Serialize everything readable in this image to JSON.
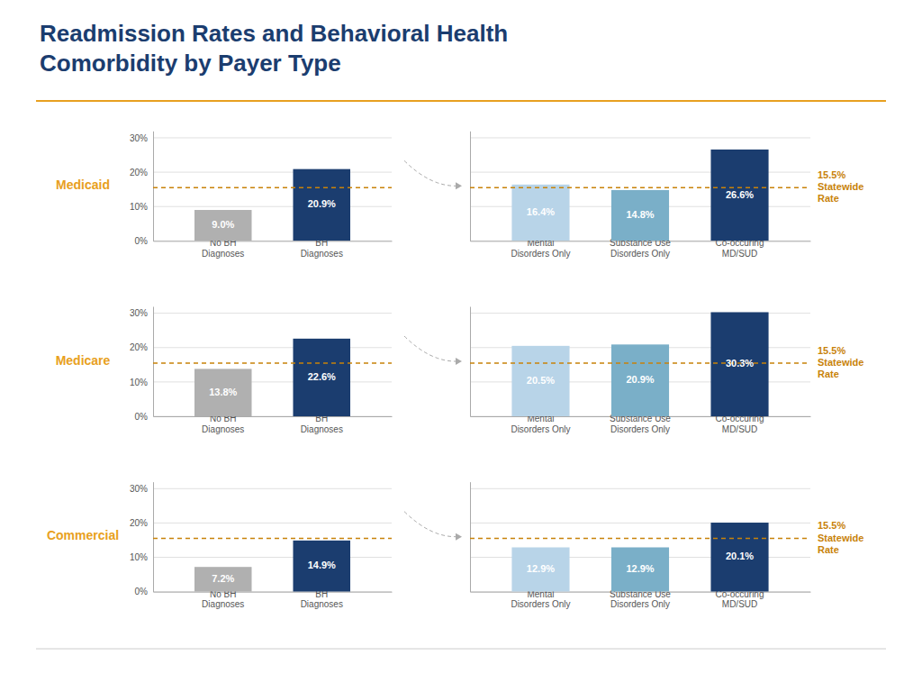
{
  "chart_data": [
    {
      "type": "bar",
      "title": "Readmission Rates and Behavioral Health\nComorbidity by Payer Type",
      "subtitle": "Medicaid",
      "categories": [
        "No BH\nDiagnoses",
        "BH\nDiagnoses"
      ],
      "values": [
        9.0,
        20.9
      ],
      "value_labels": [
        "9.0%",
        "20.9%"
      ],
      "colors": [
        "#b0b0b0",
        "#1b3d6f"
      ],
      "data_labels": true,
      "ylim": [
        0,
        32
      ],
      "yticks": [
        {
          "value": 0,
          "label": "0%"
        },
        {
          "value": 10,
          "label": "10%"
        },
        {
          "value": 20,
          "label": "20%"
        },
        {
          "value": 30,
          "label": "30%"
        }
      ],
      "grid": true,
      "annotations": [
        {
          "y": 15.5,
          "color": "#c8820a"
        }
      ]
    },
    {
      "type": "bar",
      "categories": [
        "Mental\nDisorders Only",
        "Substance Use\nDisorders Only",
        "Co-occuring\nMD/SUD"
      ],
      "values": [
        16.4,
        14.8,
        26.6
      ],
      "value_labels": [
        "16.4%",
        "14.8%",
        "26.6%"
      ],
      "colors": [
        "#b8d4e8",
        "#7aafc8",
        "#1b3d6f"
      ],
      "data_labels": true,
      "ylim": [
        0,
        32
      ],
      "yticks": [
        0,
        10,
        20,
        30
      ],
      "tick_labels": "x",
      "grid": true,
      "annotations": [
        {
          "y": 15.5,
          "text": "15.5%\nStatewide\nRate",
          "color": "#c8820a"
        }
      ]
    },
    {
      "type": "bar",
      "subtitle": "Medicare",
      "categories": [
        "No BH\nDiagnoses",
        "BH\nDiagnoses"
      ],
      "values": [
        13.8,
        22.6
      ],
      "value_labels": [
        "13.8%",
        "22.6%"
      ],
      "colors": [
        "#b0b0b0",
        "#1b3d6f"
      ],
      "data_labels": true,
      "ylim": [
        0,
        32
      ],
      "yticks": [
        {
          "value": 0,
          "label": "0%"
        },
        {
          "value": 10,
          "label": "10%"
        },
        {
          "value": 20,
          "label": "20%"
        },
        {
          "value": 30,
          "label": "30%"
        }
      ],
      "grid": true,
      "annotations": [
        {
          "y": 15.5,
          "color": "#c8820a"
        }
      ]
    },
    {
      "type": "bar",
      "categories": [
        "Mental\nDisorders Only",
        "Substance Use\nDisorders Only",
        "Co-occuring\nMD/SUD"
      ],
      "values": [
        20.5,
        20.9,
        30.3
      ],
      "value_labels": [
        "20.5%",
        "20.9%",
        "30.3%"
      ],
      "colors": [
        "#b8d4e8",
        "#7aafc8",
        "#1b3d6f"
      ],
      "data_labels": true,
      "ylim": [
        0,
        32
      ],
      "yticks": [
        0,
        10,
        20,
        30
      ],
      "tick_labels": "x",
      "grid": true,
      "annotations": [
        {
          "y": 15.5,
          "text": "15.5%\nStatewide\nRate",
          "color": "#c8820a"
        }
      ]
    },
    {
      "type": "bar",
      "subtitle": "Commercial",
      "categories": [
        "No BH\nDiagnoses",
        "BH\nDiagnoses"
      ],
      "values": [
        7.2,
        14.9
      ],
      "value_labels": [
        "7.2%",
        "14.9%"
      ],
      "colors": [
        "#b0b0b0",
        "#1b3d6f"
      ],
      "data_labels": true,
      "ylim": [
        0,
        32
      ],
      "yticks": [
        {
          "value": 0,
          "label": "0%"
        },
        {
          "value": 10,
          "label": "10%"
        },
        {
          "value": 20,
          "label": "20%"
        },
        {
          "value": 30,
          "label": "30%"
        }
      ],
      "grid": true,
      "annotations": [
        {
          "y": 15.5,
          "color": "#c8820a"
        }
      ]
    },
    {
      "type": "bar",
      "categories": [
        "Mental\nDisorders Only",
        "Substance Use\nDisorders Only",
        "Co-occuring\nMD/SUD"
      ],
      "values": [
        12.9,
        12.9,
        20.1
      ],
      "value_labels": [
        "12.9%",
        "12.9%",
        "20.1%"
      ],
      "colors": [
        "#b8d4e8",
        "#7aafc8",
        "#1b3d6f"
      ],
      "data_labels": true,
      "ylim": [
        0,
        32
      ],
      "yticks": [
        0,
        10,
        20,
        30
      ],
      "tick_labels": "x",
      "grid": true,
      "annotations": [
        {
          "y": 15.5,
          "text": "15.5%\nStatewide\nRate",
          "color": "#c8820a"
        }
      ]
    }
  ]
}
